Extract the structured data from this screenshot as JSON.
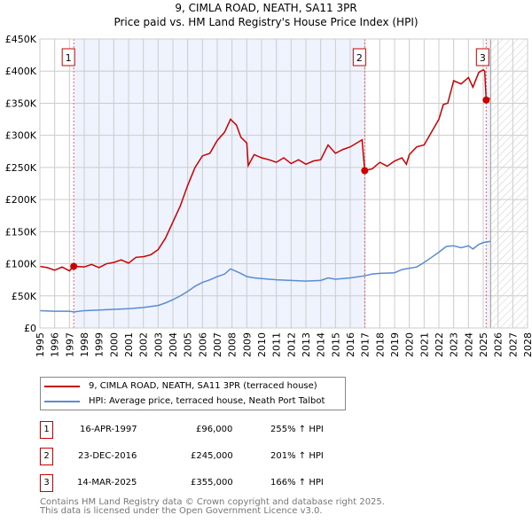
{
  "title": "9, CIMLA ROAD, NEATH, SA11 3PR",
  "subtitle": "Price paid vs. HM Land Registry's House Price Index (HPI)",
  "colors": {
    "property": "#cc0000",
    "hpi": "#5b8bd0",
    "shade": "#eef3fd"
  },
  "legend": [
    {
      "label": "9, CIMLA ROAD, NEATH, SA11 3PR (terraced house)"
    },
    {
      "label": "HPI: Average price, terraced house, Neath Port Talbot"
    }
  ],
  "sales": [
    {
      "num": "1",
      "date": "16-APR-1997",
      "price": "£96,000",
      "hpi": "255% ↑ HPI"
    },
    {
      "num": "2",
      "date": "23-DEC-2016",
      "price": "£245,000",
      "hpi": "201% ↑ HPI"
    },
    {
      "num": "3",
      "date": "14-MAR-2025",
      "price": "£355,000",
      "hpi": "166% ↑ HPI"
    }
  ],
  "footer": [
    "Contains HM Land Registry data © Crown copyright and database right 2025.",
    "This data is licensed under the Open Government Licence v3.0."
  ],
  "chart_data": {
    "type": "line",
    "xlim": [
      1995,
      2028
    ],
    "ylim": [
      0,
      450000
    ],
    "yticks": [
      0,
      50000,
      100000,
      150000,
      200000,
      250000,
      300000,
      350000,
      400000,
      450000
    ],
    "ytick_labels": [
      "£0",
      "£50K",
      "£100K",
      "£150K",
      "£200K",
      "£250K",
      "£300K",
      "£350K",
      "£400K",
      "£450K"
    ],
    "xticks": [
      "1995",
      "1996",
      "1997",
      "1998",
      "1999",
      "2000",
      "2001",
      "2002",
      "2003",
      "2004",
      "2005",
      "2006",
      "2007",
      "2008",
      "2009",
      "2010",
      "2011",
      "2012",
      "2013",
      "2014",
      "2015",
      "2016",
      "2017",
      "2018",
      "2019",
      "2020",
      "2021",
      "2022",
      "2023",
      "2024",
      "2025",
      "2026",
      "2027",
      "2028"
    ],
    "forecast_start": 2025.5,
    "sale_points": [
      {
        "label": "1",
        "x": 1997.29,
        "y": 96000
      },
      {
        "label": "2",
        "x": 2016.98,
        "y": 245000
      },
      {
        "label": "3",
        "x": 2025.2,
        "y": 355000
      }
    ],
    "series": [
      {
        "name": "9, CIMLA ROAD, NEATH, SA11 3PR (terraced house)",
        "points": [
          [
            1995,
            96
          ],
          [
            1995.5,
            94
          ],
          [
            1996,
            90
          ],
          [
            1996.5,
            95
          ],
          [
            1997,
            89
          ],
          [
            1997.29,
            96
          ],
          [
            1998,
            95
          ],
          [
            1998.5,
            99
          ],
          [
            1999,
            94
          ],
          [
            1999.5,
            100
          ],
          [
            2000,
            102
          ],
          [
            2000.5,
            106
          ],
          [
            2001,
            101
          ],
          [
            2001.5,
            110
          ],
          [
            2002,
            111
          ],
          [
            2002.5,
            114
          ],
          [
            2003,
            122
          ],
          [
            2003.5,
            140
          ],
          [
            2004,
            165
          ],
          [
            2004.5,
            190
          ],
          [
            2005,
            222
          ],
          [
            2005.5,
            250
          ],
          [
            2006,
            268
          ],
          [
            2006.5,
            272
          ],
          [
            2007,
            292
          ],
          [
            2007.5,
            305
          ],
          [
            2007.9,
            325
          ],
          [
            2008.3,
            316
          ],
          [
            2008.6,
            297
          ],
          [
            2009,
            288
          ],
          [
            2009.1,
            253
          ],
          [
            2009.5,
            270
          ],
          [
            2010,
            265
          ],
          [
            2010.5,
            262
          ],
          [
            2011,
            258
          ],
          [
            2011.5,
            265
          ],
          [
            2012,
            256
          ],
          [
            2012.5,
            262
          ],
          [
            2013,
            255
          ],
          [
            2013.5,
            260
          ],
          [
            2014,
            262
          ],
          [
            2014.5,
            285
          ],
          [
            2015,
            272
          ],
          [
            2015.5,
            278
          ],
          [
            2016,
            282
          ],
          [
            2016.8,
            293
          ],
          [
            2016.98,
            245
          ],
          [
            2017.5,
            248
          ],
          [
            2018,
            258
          ],
          [
            2018.5,
            252
          ],
          [
            2019,
            260
          ],
          [
            2019.5,
            265
          ],
          [
            2019.8,
            255
          ],
          [
            2020,
            270
          ],
          [
            2020.5,
            282
          ],
          [
            2021,
            285
          ],
          [
            2021.5,
            305
          ],
          [
            2022,
            325
          ],
          [
            2022.3,
            348
          ],
          [
            2022.6,
            350
          ],
          [
            2023,
            385
          ],
          [
            2023.5,
            380
          ],
          [
            2024,
            390
          ],
          [
            2024.3,
            375
          ],
          [
            2024.7,
            398
          ],
          [
            2025,
            402
          ],
          [
            2025.1,
            400
          ],
          [
            2025.2,
            355
          ],
          [
            2025.45,
            358
          ]
        ]
      },
      {
        "name": "HPI: Average price, terraced house, Neath Port Talbot",
        "points": [
          [
            1995,
            27
          ],
          [
            1996,
            26
          ],
          [
            1997,
            26
          ],
          [
            1997.3,
            25
          ],
          [
            1998,
            27
          ],
          [
            1999,
            28
          ],
          [
            2000,
            29
          ],
          [
            2001,
            30
          ],
          [
            2002,
            32
          ],
          [
            2003,
            35
          ],
          [
            2003.5,
            39
          ],
          [
            2004,
            44
          ],
          [
            2004.5,
            50
          ],
          [
            2005,
            57
          ],
          [
            2005.5,
            65
          ],
          [
            2006,
            71
          ],
          [
            2006.5,
            75
          ],
          [
            2007,
            80
          ],
          [
            2007.5,
            84
          ],
          [
            2007.9,
            92
          ],
          [
            2008.5,
            86
          ],
          [
            2009,
            80
          ],
          [
            2009.5,
            78
          ],
          [
            2010,
            77
          ],
          [
            2011,
            75
          ],
          [
            2012,
            74
          ],
          [
            2013,
            73
          ],
          [
            2014,
            74
          ],
          [
            2014.5,
            78
          ],
          [
            2015,
            76
          ],
          [
            2016,
            78
          ],
          [
            2016.9,
            81
          ],
          [
            2017.5,
            84
          ],
          [
            2018,
            85
          ],
          [
            2019,
            86
          ],
          [
            2019.5,
            91
          ],
          [
            2020,
            93
          ],
          [
            2020.5,
            95
          ],
          [
            2021,
            102
          ],
          [
            2021.5,
            110
          ],
          [
            2022,
            118
          ],
          [
            2022.5,
            127
          ],
          [
            2023,
            128
          ],
          [
            2023.5,
            125
          ],
          [
            2024,
            128
          ],
          [
            2024.3,
            123
          ],
          [
            2024.7,
            130
          ],
          [
            2025,
            133
          ],
          [
            2025.5,
            135
          ]
        ]
      }
    ]
  }
}
